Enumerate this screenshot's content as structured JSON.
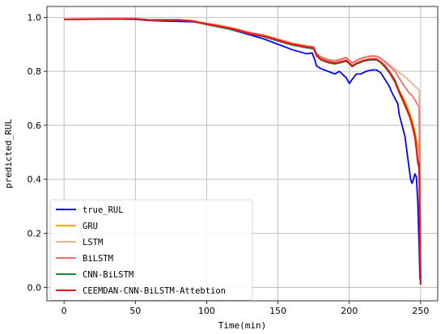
{
  "chart_data": {
    "type": "line",
    "xlabel": "Time(min)",
    "ylabel": "predicted_RUL",
    "xlim": [
      -12,
      262
    ],
    "ylim": [
      -0.05,
      1.04
    ],
    "xticks": [
      0,
      50,
      100,
      150,
      200,
      250
    ],
    "yticks": [
      0.0,
      0.2,
      0.4,
      0.6,
      0.8,
      1.0
    ],
    "xtick_labels": [
      "0",
      "50",
      "100",
      "150",
      "200",
      "250"
    ],
    "ytick_labels": [
      "0.0",
      "0.2",
      "0.4",
      "0.6",
      "0.8",
      "1.0"
    ],
    "grid": true,
    "legend_position": "lower-left",
    "series": [
      {
        "name": "true_RUL",
        "color": "#0000ff",
        "points": [
          [
            0,
            0.992
          ],
          [
            20,
            0.993
          ],
          [
            40,
            0.993
          ],
          [
            50,
            0.992
          ],
          [
            60,
            0.988
          ],
          [
            70,
            0.986
          ],
          [
            80,
            0.985
          ],
          [
            90,
            0.983
          ],
          [
            100,
            0.976
          ],
          [
            110,
            0.965
          ],
          [
            120,
            0.95
          ],
          [
            130,
            0.935
          ],
          [
            140,
            0.92
          ],
          [
            150,
            0.9
          ],
          [
            160,
            0.88
          ],
          [
            170,
            0.865
          ],
          [
            174,
            0.868
          ],
          [
            176,
            0.84
          ],
          [
            177,
            0.82
          ],
          [
            180,
            0.81
          ],
          [
            185,
            0.8
          ],
          [
            190,
            0.79
          ],
          [
            193,
            0.8
          ],
          [
            196,
            0.785
          ],
          [
            198,
            0.775
          ],
          [
            200,
            0.755
          ],
          [
            202,
            0.77
          ],
          [
            205,
            0.79
          ],
          [
            208,
            0.79
          ],
          [
            212,
            0.8
          ],
          [
            216,
            0.805
          ],
          [
            219,
            0.805
          ],
          [
            222,
            0.795
          ],
          [
            225,
            0.77
          ],
          [
            228,
            0.745
          ],
          [
            230,
            0.72
          ],
          [
            232,
            0.7
          ],
          [
            234,
            0.68
          ],
          [
            235,
            0.64
          ],
          [
            237,
            0.6
          ],
          [
            238,
            0.58
          ],
          [
            239,
            0.56
          ],
          [
            240,
            0.52
          ],
          [
            241,
            0.48
          ],
          [
            242,
            0.44
          ],
          [
            243,
            0.4
          ],
          [
            244,
            0.385
          ],
          [
            245,
            0.4
          ],
          [
            246,
            0.42
          ],
          [
            247,
            0.41
          ],
          [
            248,
            0.32
          ],
          [
            249,
            0.15
          ],
          [
            249.5,
            0.03
          ]
        ]
      },
      {
        "name": "GRU",
        "color": "#ffa500",
        "points": [
          [
            0,
            0.992
          ],
          [
            30,
            0.994
          ],
          [
            50,
            0.994
          ],
          [
            60,
            0.99
          ],
          [
            80,
            0.99
          ],
          [
            90,
            0.986
          ],
          [
            100,
            0.975
          ],
          [
            110,
            0.965
          ],
          [
            120,
            0.955
          ],
          [
            130,
            0.94
          ],
          [
            140,
            0.93
          ],
          [
            150,
            0.915
          ],
          [
            160,
            0.9
          ],
          [
            170,
            0.89
          ],
          [
            175,
            0.886
          ],
          [
            177,
            0.86
          ],
          [
            180,
            0.845
          ],
          [
            185,
            0.835
          ],
          [
            190,
            0.83
          ],
          [
            195,
            0.836
          ],
          [
            198,
            0.84
          ],
          [
            200,
            0.83
          ],
          [
            202,
            0.82
          ],
          [
            205,
            0.83
          ],
          [
            210,
            0.84
          ],
          [
            215,
            0.845
          ],
          [
            219,
            0.845
          ],
          [
            222,
            0.835
          ],
          [
            225,
            0.82
          ],
          [
            228,
            0.8
          ],
          [
            232,
            0.77
          ],
          [
            235,
            0.73
          ],
          [
            238,
            0.7
          ],
          [
            240,
            0.68
          ],
          [
            242,
            0.65
          ],
          [
            244,
            0.62
          ],
          [
            246,
            0.58
          ],
          [
            247,
            0.55
          ],
          [
            248,
            0.53
          ],
          [
            249,
            0.5
          ],
          [
            250,
            0.01
          ]
        ]
      },
      {
        "name": "LSTM",
        "color": "#e9b68c",
        "points": [
          [
            0,
            0.992
          ],
          [
            30,
            0.994
          ],
          [
            50,
            0.994
          ],
          [
            60,
            0.99
          ],
          [
            80,
            0.99
          ],
          [
            90,
            0.987
          ],
          [
            100,
            0.978
          ],
          [
            110,
            0.97
          ],
          [
            120,
            0.958
          ],
          [
            130,
            0.945
          ],
          [
            140,
            0.935
          ],
          [
            150,
            0.92
          ],
          [
            160,
            0.905
          ],
          [
            170,
            0.895
          ],
          [
            175,
            0.892
          ],
          [
            177,
            0.868
          ],
          [
            180,
            0.855
          ],
          [
            185,
            0.845
          ],
          [
            190,
            0.84
          ],
          [
            195,
            0.848
          ],
          [
            198,
            0.852
          ],
          [
            200,
            0.842
          ],
          [
            202,
            0.832
          ],
          [
            205,
            0.842
          ],
          [
            210,
            0.852
          ],
          [
            215,
            0.858
          ],
          [
            219,
            0.857
          ],
          [
            222,
            0.85
          ],
          [
            225,
            0.838
          ],
          [
            228,
            0.825
          ],
          [
            232,
            0.81
          ],
          [
            235,
            0.795
          ],
          [
            238,
            0.785
          ],
          [
            240,
            0.775
          ],
          [
            242,
            0.765
          ],
          [
            244,
            0.755
          ],
          [
            246,
            0.745
          ],
          [
            247,
            0.74
          ],
          [
            248,
            0.735
          ],
          [
            249,
            0.73
          ],
          [
            250,
            0.01
          ]
        ]
      },
      {
        "name": "BiLSTM",
        "color": "#f06c6c",
        "points": [
          [
            0,
            0.992
          ],
          [
            30,
            0.994
          ],
          [
            50,
            0.994
          ],
          [
            60,
            0.99
          ],
          [
            80,
            0.99
          ],
          [
            90,
            0.987
          ],
          [
            100,
            0.977
          ],
          [
            110,
            0.968
          ],
          [
            120,
            0.957
          ],
          [
            130,
            0.943
          ],
          [
            140,
            0.933
          ],
          [
            150,
            0.918
          ],
          [
            160,
            0.903
          ],
          [
            170,
            0.893
          ],
          [
            175,
            0.89
          ],
          [
            177,
            0.865
          ],
          [
            180,
            0.852
          ],
          [
            185,
            0.842
          ],
          [
            190,
            0.837
          ],
          [
            195,
            0.845
          ],
          [
            198,
            0.85
          ],
          [
            200,
            0.84
          ],
          [
            202,
            0.83
          ],
          [
            205,
            0.84
          ],
          [
            210,
            0.85
          ],
          [
            215,
            0.855
          ],
          [
            219,
            0.855
          ],
          [
            222,
            0.848
          ],
          [
            225,
            0.835
          ],
          [
            228,
            0.82
          ],
          [
            232,
            0.8
          ],
          [
            235,
            0.775
          ],
          [
            238,
            0.75
          ],
          [
            240,
            0.735
          ],
          [
            242,
            0.72
          ],
          [
            244,
            0.71
          ],
          [
            246,
            0.695
          ],
          [
            247,
            0.685
          ],
          [
            248,
            0.675
          ],
          [
            249,
            0.67
          ],
          [
            250,
            0.01
          ]
        ]
      },
      {
        "name": "CNN-BiLSTM",
        "color": "#1a8a3a",
        "points": [
          [
            0,
            0.992
          ],
          [
            30,
            0.994
          ],
          [
            50,
            0.994
          ],
          [
            60,
            0.99
          ],
          [
            80,
            0.99
          ],
          [
            90,
            0.985
          ],
          [
            100,
            0.973
          ],
          [
            110,
            0.962
          ],
          [
            120,
            0.952
          ],
          [
            130,
            0.938
          ],
          [
            140,
            0.928
          ],
          [
            150,
            0.912
          ],
          [
            160,
            0.897
          ],
          [
            170,
            0.887
          ],
          [
            175,
            0.883
          ],
          [
            177,
            0.857
          ],
          [
            180,
            0.842
          ],
          [
            185,
            0.832
          ],
          [
            190,
            0.827
          ],
          [
            195,
            0.833
          ],
          [
            198,
            0.837
          ],
          [
            200,
            0.827
          ],
          [
            202,
            0.817
          ],
          [
            205,
            0.827
          ],
          [
            210,
            0.837
          ],
          [
            215,
            0.842
          ],
          [
            219,
            0.842
          ],
          [
            222,
            0.832
          ],
          [
            225,
            0.815
          ],
          [
            228,
            0.795
          ],
          [
            232,
            0.76
          ],
          [
            235,
            0.72
          ],
          [
            238,
            0.685
          ],
          [
            240,
            0.66
          ],
          [
            242,
            0.635
          ],
          [
            244,
            0.6
          ],
          [
            246,
            0.555
          ],
          [
            247,
            0.51
          ],
          [
            248,
            0.46
          ],
          [
            249,
            0.44
          ],
          [
            250,
            0.01
          ]
        ]
      },
      {
        "name": "CEEMDAN-CNN-BiLSTM-Attebtion",
        "color": "#e31a1a",
        "points": [
          [
            0,
            0.992
          ],
          [
            30,
            0.994
          ],
          [
            50,
            0.994
          ],
          [
            60,
            0.99
          ],
          [
            80,
            0.99
          ],
          [
            90,
            0.986
          ],
          [
            100,
            0.975
          ],
          [
            110,
            0.965
          ],
          [
            120,
            0.955
          ],
          [
            130,
            0.94
          ],
          [
            140,
            0.93
          ],
          [
            150,
            0.915
          ],
          [
            160,
            0.9
          ],
          [
            170,
            0.89
          ],
          [
            175,
            0.886
          ],
          [
            177,
            0.86
          ],
          [
            180,
            0.845
          ],
          [
            185,
            0.835
          ],
          [
            190,
            0.83
          ],
          [
            195,
            0.836
          ],
          [
            198,
            0.84
          ],
          [
            200,
            0.83
          ],
          [
            202,
            0.82
          ],
          [
            205,
            0.83
          ],
          [
            210,
            0.84
          ],
          [
            215,
            0.845
          ],
          [
            219,
            0.845
          ],
          [
            222,
            0.835
          ],
          [
            225,
            0.82
          ],
          [
            228,
            0.8
          ],
          [
            232,
            0.765
          ],
          [
            235,
            0.725
          ],
          [
            238,
            0.69
          ],
          [
            240,
            0.665
          ],
          [
            242,
            0.64
          ],
          [
            244,
            0.605
          ],
          [
            246,
            0.56
          ],
          [
            247,
            0.52
          ],
          [
            248,
            0.47
          ],
          [
            249,
            0.455
          ],
          [
            250,
            0.01
          ]
        ]
      }
    ]
  }
}
